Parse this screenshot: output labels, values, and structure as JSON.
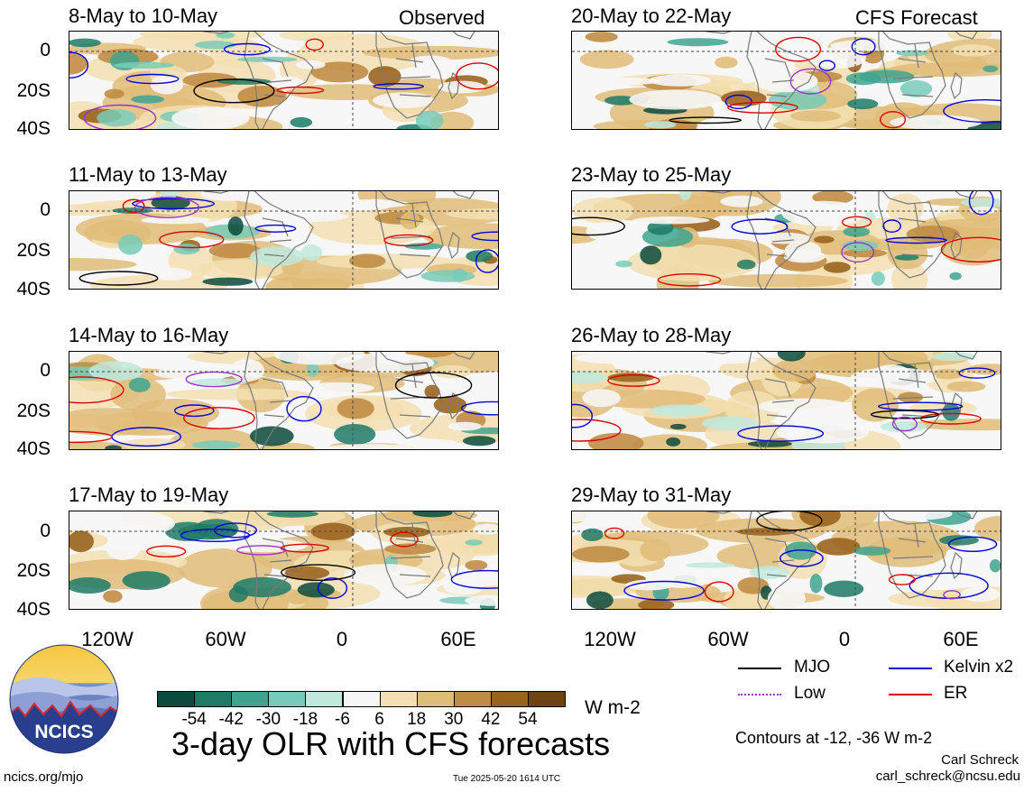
{
  "titles": {
    "observed": "Observed",
    "forecast": "CFS Forecast",
    "main": "3-day OLR with CFS forecasts"
  },
  "panels": {
    "left": [
      "8-May to 10-May",
      "11-May to 13-May",
      "14-May to 16-May",
      "17-May to 19-May"
    ],
    "right": [
      "20-May to 22-May",
      "23-May to 25-May",
      "26-May to 28-May",
      "29-May to 31-May"
    ]
  },
  "axes": {
    "y_ticks": [
      "0",
      "20S",
      "40S"
    ],
    "x_ticks": [
      "120W",
      "60W",
      "0",
      "60E"
    ]
  },
  "colorbar": {
    "labels": [
      "-54",
      "-42",
      "-30",
      "-18",
      "-6",
      "6",
      "18",
      "30",
      "42",
      "54"
    ],
    "unit": "W m-2",
    "colors": [
      "#0b4a3c",
      "#1f7a66",
      "#3ea48f",
      "#78cbb8",
      "#c0e9de",
      "#f6f6f6",
      "#f3dfb1",
      "#e0bc79",
      "#c08c45",
      "#9a641f",
      "#6f4312"
    ]
  },
  "legend": {
    "mjo": {
      "label": "MJO",
      "color": "#000000"
    },
    "low": {
      "label": "Low",
      "color": "#9933cc"
    },
    "kelvin": {
      "label": "Kelvin x2",
      "color": "#0000dd"
    },
    "er": {
      "label": "ER",
      "color": "#dd0000"
    }
  },
  "contours_note": "Contours at -12, -36 W m-2",
  "logo": {
    "text": "NCICS"
  },
  "footer": {
    "url": "ncics.org/mjo",
    "timestamp": "Tue 2025-05-20 1614 UTC",
    "author": "Carl Schreck",
    "email": "carl_schreck@ncsu.edu"
  }
}
